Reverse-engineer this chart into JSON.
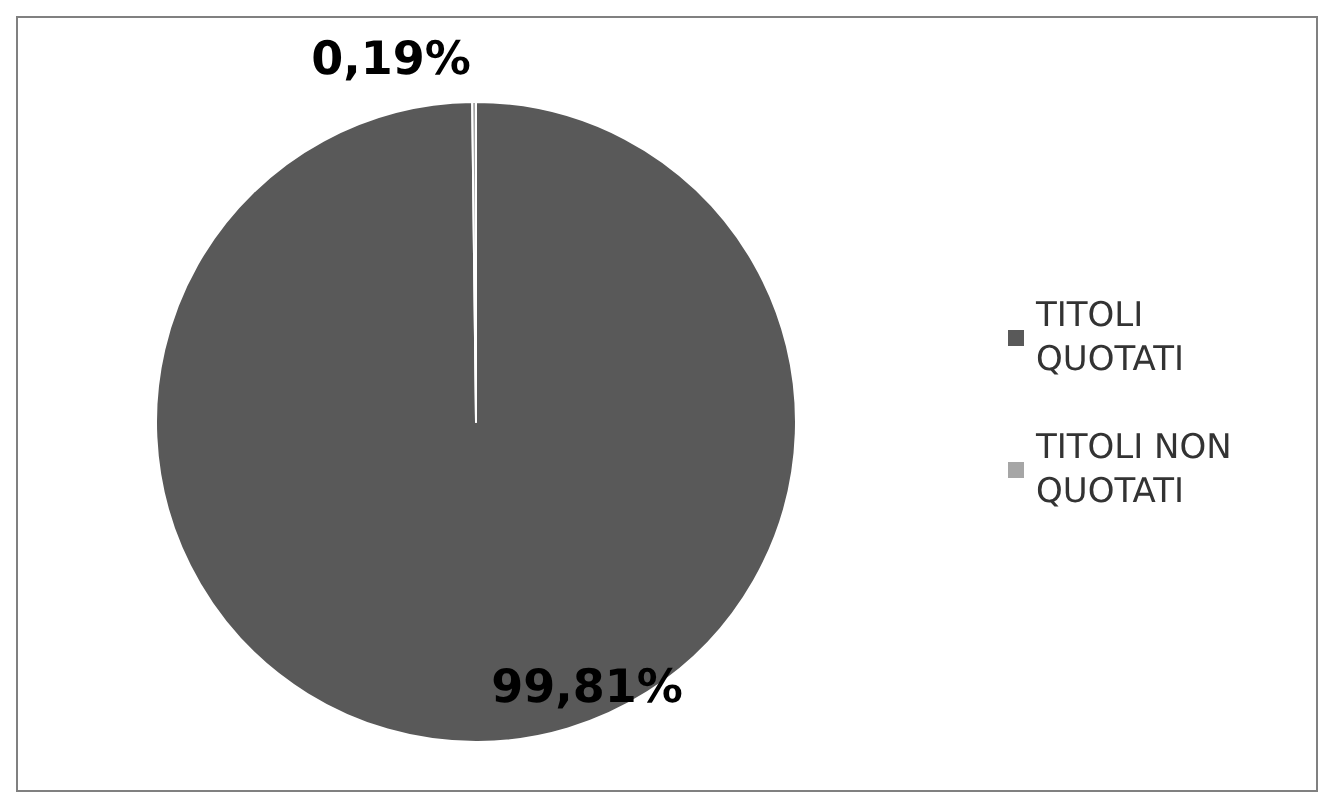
{
  "chart_data": {
    "type": "pie",
    "categories": [
      "TITOLI QUOTATI",
      "TITOLI NON QUOTATI"
    ],
    "values": [
      99.81,
      0.19
    ],
    "colors": [
      "#595959",
      "#a6a6a6"
    ],
    "value_labels": [
      "99,81%",
      "0,19%"
    ],
    "legend": "right"
  }
}
